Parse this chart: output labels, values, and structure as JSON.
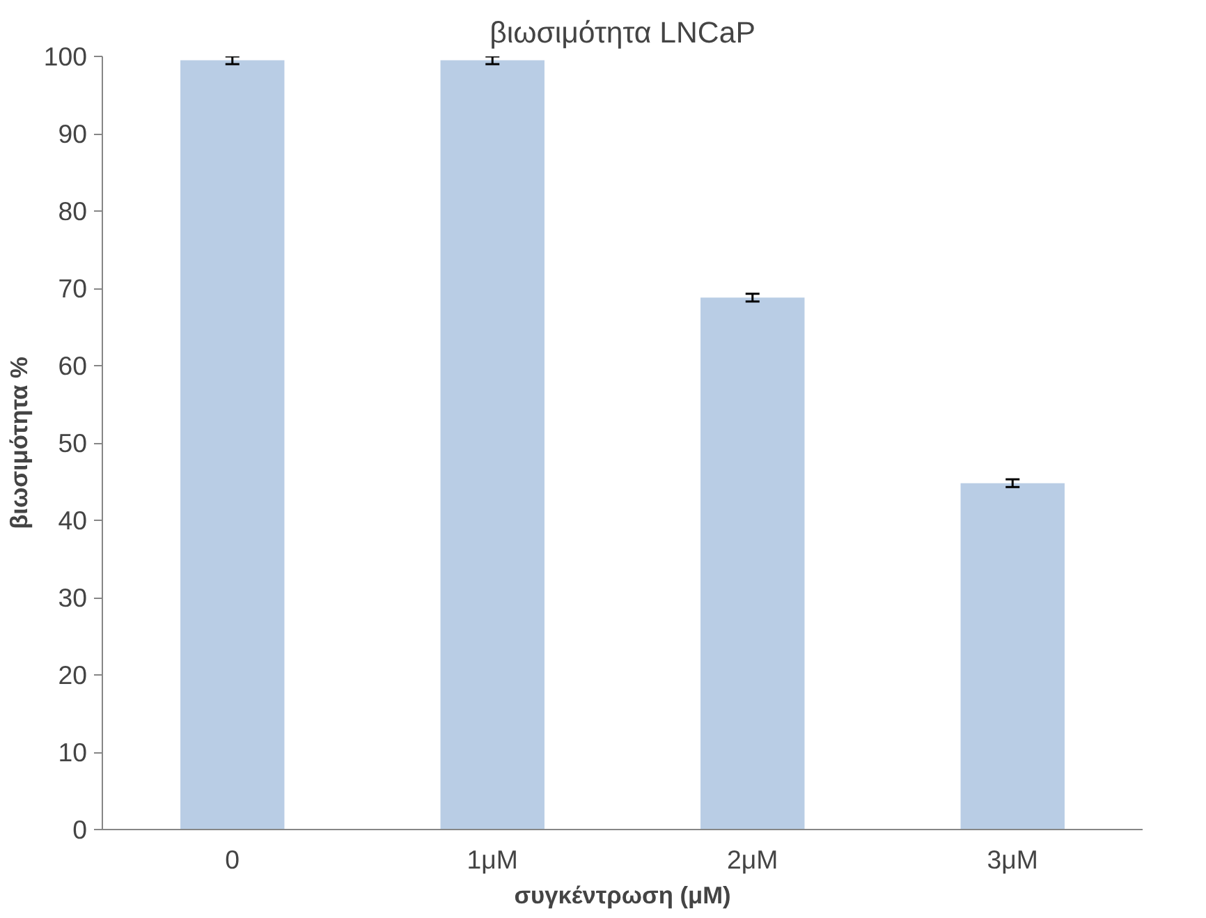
{
  "chart_data": {
    "type": "bar",
    "title": "βιωσιμότητα LNCaP",
    "xlabel": "συγκέντρωση (μM)",
    "ylabel": "βιωσιμότητα %",
    "categories": [
      "0",
      "1μM",
      "2μM",
      "3μM"
    ],
    "values": [
      99.5,
      99.5,
      68.8,
      44.8
    ],
    "errors": [
      0.5,
      0.5,
      0.5,
      0.5
    ],
    "color": "#b9cde5",
    "ylim": [
      0,
      100
    ],
    "yticks": [
      0,
      10,
      20,
      30,
      40,
      50,
      60,
      70,
      80,
      90,
      100
    ],
    "grid": false
  }
}
